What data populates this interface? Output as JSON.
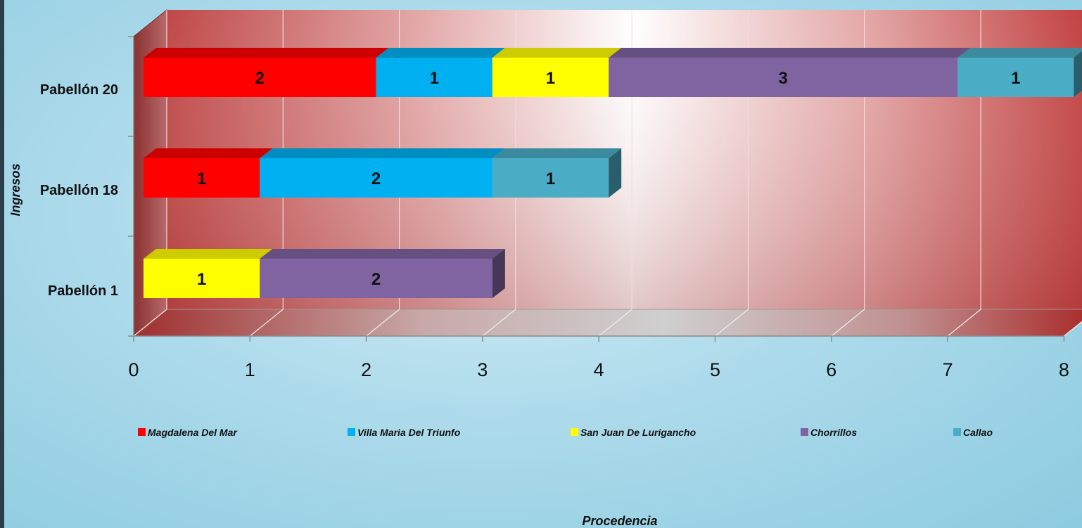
{
  "chart_data": {
    "type": "bar",
    "orientation": "horizontal",
    "stacked": true,
    "three_d": true,
    "title": "",
    "xlabel": "Procedencia",
    "ylabel": "Ingresos",
    "xlim": [
      0,
      8
    ],
    "x_ticks": [
      "0",
      "1",
      "2",
      "3",
      "4",
      "5",
      "6",
      "7",
      "8"
    ],
    "grid": true,
    "legend_position": "bottom",
    "categories": [
      "Pabellón 20",
      "Pabellón 18",
      "Pabellón 1"
    ],
    "series": [
      {
        "name": "Magdalena Del Mar",
        "color": "#ff0000",
        "values": [
          2,
          1,
          0
        ]
      },
      {
        "name": "Villa Maria Del Triunfo",
        "color": "#00b0f0",
        "values": [
          1,
          2,
          0
        ]
      },
      {
        "name": "San Juan De Lurigancho",
        "color": "#ffff00",
        "values": [
          1,
          0,
          1
        ]
      },
      {
        "name": "Chorrillos",
        "color": "#8064a2",
        "values": [
          3,
          0,
          2
        ]
      },
      {
        "name": "Callao",
        "color": "#4bacc6",
        "values": [
          1,
          1,
          0
        ]
      }
    ]
  }
}
